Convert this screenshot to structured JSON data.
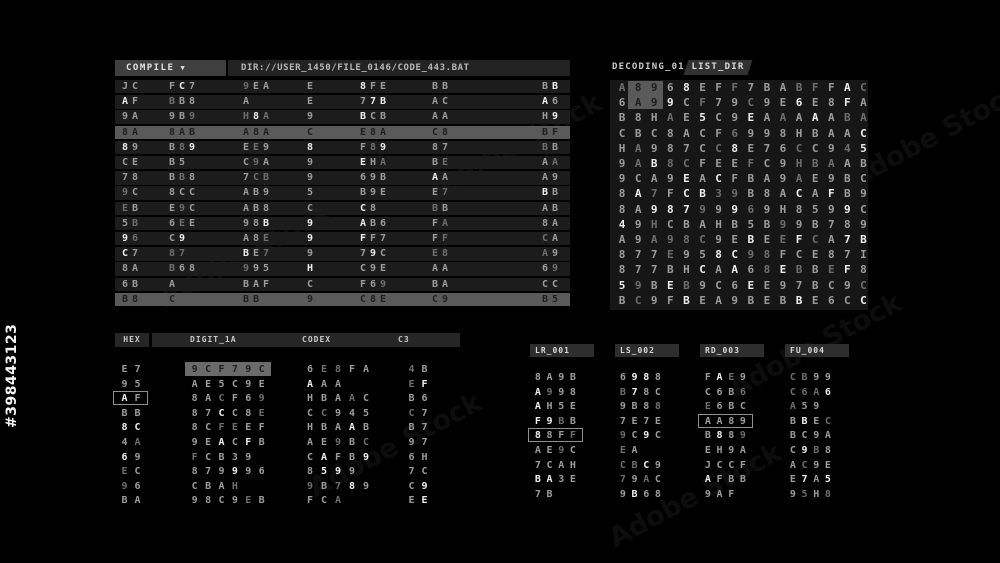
{
  "watermarks": {
    "stock_id": "#398443123",
    "stock_label": "Adobe Stock"
  },
  "colors": {
    "background": "#000000",
    "row_bg": "#1c1c1c",
    "grid_bg": "#161616",
    "menu_bg": "#3f3f3f",
    "bar_bg": "#232323",
    "highlight_bg": "#5a5a5a",
    "text": "#9c9c9c",
    "text_bright": "#eeeeee",
    "text_dim": "#6e6e6e"
  },
  "compile_panel": {
    "menu_label": "COMPILE",
    "menu_caret": "▼",
    "dir_path": "DIR://USER_1450/FILE_0146/CODE_443.BAT",
    "rows": [
      [
        "JC",
        "FC7",
        "9EA",
        "E",
        "8FE",
        "BB",
        "BB"
      ],
      [
        "AF",
        "BB8",
        "A",
        "E",
        "77B",
        "AC",
        "A6"
      ],
      [
        "9A",
        "9B9",
        "H8A",
        "9",
        "BCB",
        "AA",
        "H9"
      ],
      [
        "8A",
        "8AB",
        "A8A",
        "C",
        "E8A",
        "C8",
        "BF"
      ],
      [
        "89",
        "B89",
        "EE9",
        "8",
        "F89",
        "87",
        "BB"
      ],
      [
        "CE",
        "B5",
        "C9A",
        "9",
        "EHA",
        "BE",
        "AA"
      ],
      [
        "78",
        "BB8",
        "7CB",
        "9",
        "69B",
        "AA",
        "A9"
      ],
      [
        "9C",
        "8CC",
        "AB9",
        "5",
        "B9E",
        "E7",
        "BB"
      ],
      [
        "EB",
        "E9C",
        "AB8",
        "C",
        "C8",
        "BB",
        "AB"
      ],
      [
        "5B",
        "6EE",
        "98B",
        "9",
        "AB6",
        "FA",
        "8A"
      ],
      [
        "96",
        "C9",
        "A8E",
        "9",
        "FF7",
        "FF",
        "CA"
      ],
      [
        "C7",
        "87",
        "BE7",
        "9",
        "79C",
        "E8",
        "A9"
      ],
      [
        "8A",
        "B68",
        "995",
        "H",
        "C9E",
        "AA",
        "69"
      ],
      [
        "6B",
        "A",
        "BAF",
        "C",
        "F69",
        "BA",
        "CC"
      ],
      [
        "B8",
        "C",
        "BB",
        "9",
        "C8E",
        "C9",
        "B5"
      ]
    ],
    "highlighted_rows": [
      3,
      14
    ]
  },
  "decoding_panel": {
    "title": "DECODING_01",
    "tab_label": "LIST_DIR",
    "rows": [
      "A8968EFF7BABFFAC",
      "6A99CF79C9E6E8FA",
      "B8HAE5C9EAAAAABA",
      "CBC8ACF6998HBAAC",
      "HA987CC8E76CC945",
      "9AB8CFEEFC9HBAAB",
      "9CA9EACFBA9AE9BC",
      "8A7FCB39B8ACAFB9",
      "8A98799969H8599C",
      "49HCBAHB5B99B789",
      "A9A98C9EBEEFCA7B",
      "877E958C98FCE87I",
      "877BHCAA68EBBEF8",
      "59BEB9C6EE97BC9C",
      "BC9FBEA9BEBBE6CC"
    ],
    "highlight": {
      "rows": [
        0,
        1
      ],
      "cols": [
        1,
        2
      ]
    }
  },
  "codex_panel": {
    "col_headers": [
      "HEX",
      "DIGIT_1A",
      "CODEX",
      "C3"
    ],
    "rows": [
      [
        "E7",
        "9CF79C",
        "6E8FA",
        "4B"
      ],
      [
        "95",
        "AE5C9E",
        "AAA",
        "EF"
      ],
      [
        "AF",
        "8ACF69",
        "HBAAC",
        "B6"
      ],
      [
        "BB",
        "87CC8E",
        "CC945",
        "C7"
      ],
      [
        "8C",
        "8CFEEF",
        "HBAAB",
        "B7"
      ],
      [
        "4A",
        "9EACFB",
        "AE9BC",
        "97"
      ],
      [
        "69",
        "FCB39",
        "CAFB9",
        "6H"
      ],
      [
        "EC",
        "879996",
        "8599",
        "7C"
      ],
      [
        "96",
        "CBAH",
        "9B789",
        "C9"
      ],
      [
        "BA",
        "98C9EB",
        "FCA",
        "EE"
      ]
    ],
    "filled_highlight": {
      "row": 0,
      "col": 1
    },
    "outline_box": {
      "row": 2,
      "col": 0
    }
  },
  "register_panels": [
    {
      "title": "LR_001",
      "values": [
        "8A9B",
        "A998",
        "AH5E",
        "F9BB",
        "88FF",
        "AE9C",
        "7CAH",
        "BA3E",
        "7B"
      ],
      "boxed_row": 4
    },
    {
      "title": "LS_002",
      "values": [
        "6988",
        "B78C",
        "9B88",
        "7E7E",
        "9C9C",
        "EA",
        "CBC9",
        "79AC",
        "9B68"
      ],
      "boxed_row": null
    },
    {
      "title": "RD_003",
      "values": [
        "FAE9",
        "C6B6",
        "E6BC",
        "AA89",
        "B889",
        "EH9A",
        "JCCF",
        "AFBB",
        "9AF"
      ],
      "boxed_row": 3
    },
    {
      "title": "FU_004",
      "values": [
        "CB99",
        "C6A6",
        "A59",
        "BBEC",
        "BC9A",
        "C9B8",
        "AC9E",
        "E7A5",
        "95H8"
      ],
      "boxed_row": null
    }
  ]
}
